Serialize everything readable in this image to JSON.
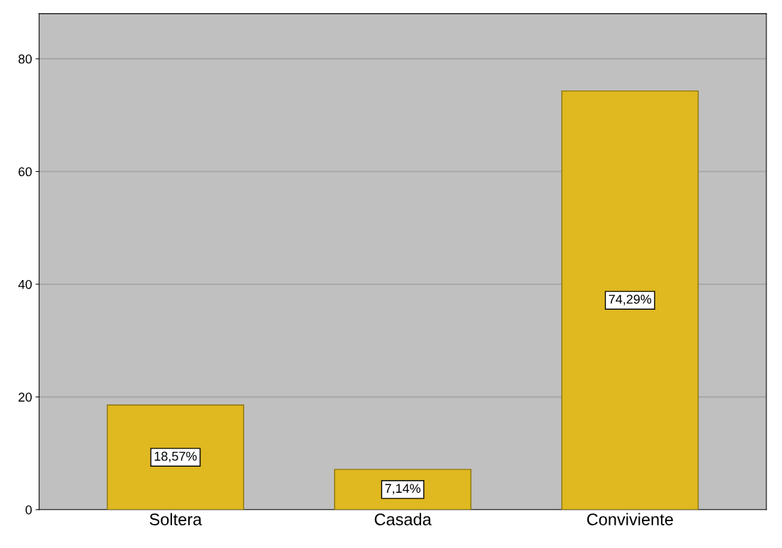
{
  "chart_data": {
    "type": "bar",
    "categories": [
      "Soltera",
      "Casada",
      "Conviviente"
    ],
    "values": [
      18.57,
      7.14,
      74.29
    ],
    "value_labels": [
      "18,57%",
      "7,14%",
      "74,29%"
    ],
    "color": "#e0b820",
    "ylim": [
      0,
      88
    ],
    "yticks": [
      0,
      20,
      40,
      60,
      80
    ],
    "grid": "y"
  }
}
